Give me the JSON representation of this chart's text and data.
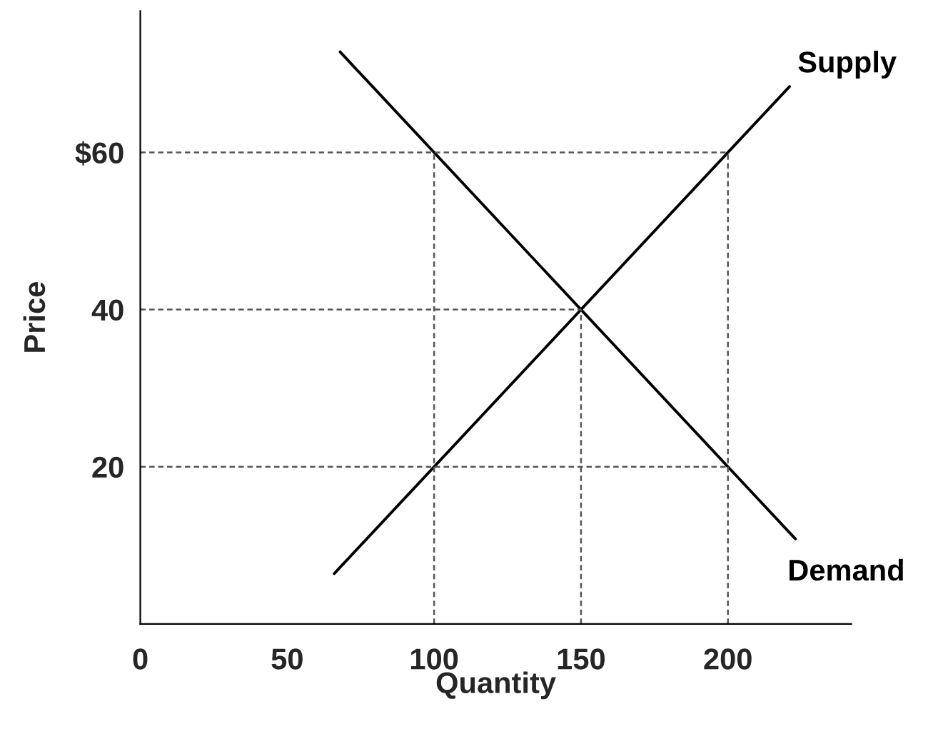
{
  "chart_data": {
    "type": "line",
    "xlabel": "Quantity",
    "ylabel": "Price",
    "xlim": [
      0,
      242
    ],
    "ylim": [
      0,
      78
    ],
    "xticks": [
      0,
      50,
      100,
      150,
      200
    ],
    "yticks": [
      {
        "value": 20,
        "label": "20"
      },
      {
        "value": 40,
        "label": "40"
      },
      {
        "value": 60,
        "label": "$60"
      }
    ],
    "legend": false,
    "grid": false,
    "marker": "none",
    "series": [
      {
        "name": "Supply",
        "color": "#000000",
        "x": [
          66,
          221
        ],
        "values": [
          6.4,
          68.4
        ]
      },
      {
        "name": "Demand",
        "color": "#000000",
        "x": [
          68,
          223
        ],
        "values": [
          72.8,
          10.8
        ]
      },
      {
        "color": "#555555",
        "line_style": "dashed",
        "x": [
          0,
          200
        ],
        "values": [
          60,
          60
        ]
      },
      {
        "color": "#555555",
        "line_style": "dashed",
        "x": [
          0,
          150
        ],
        "values": [
          40,
          40
        ]
      },
      {
        "color": "#555555",
        "line_style": "dashed",
        "x": [
          0,
          200
        ],
        "values": [
          20,
          20
        ]
      },
      {
        "color": "#555555",
        "line_style": "dashed",
        "x": [
          100,
          100
        ],
        "values": [
          0,
          60
        ]
      },
      {
        "color": "#555555",
        "line_style": "dashed",
        "x": [
          150,
          150
        ],
        "values": [
          0,
          40
        ]
      },
      {
        "color": "#555555",
        "line_style": "dashed",
        "x": [
          200,
          200
        ],
        "values": [
          0,
          60
        ]
      }
    ]
  }
}
